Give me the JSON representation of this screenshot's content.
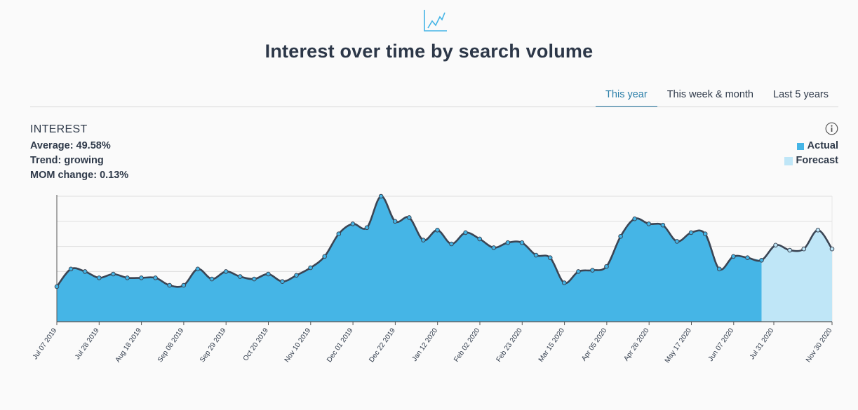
{
  "header": {
    "icon": "trend-chart-icon",
    "title": "Interest over time by search volume"
  },
  "tabs": [
    {
      "label": "This year",
      "active": true
    },
    {
      "label": "This week & month",
      "active": false
    },
    {
      "label": "Last 5 years",
      "active": false
    }
  ],
  "stats": {
    "heading": "INTEREST",
    "average": "Average: 49.58%",
    "trend": "Trend: growing",
    "mom_change": "MOM change: 0.13%"
  },
  "info_icon": "info-icon",
  "legend": {
    "actual": "Actual",
    "forecast": "Forecast"
  },
  "colors": {
    "actual": "#45b5e6",
    "forecast": "#bfe6f7",
    "line": "#3b4554",
    "accent": "#2a7ea8"
  },
  "chart_data": {
    "type": "area",
    "x_tick_labels": [
      "Jul 07 2019",
      "Jul 28 2019",
      "Aug 18 2019",
      "Sep 08 2019",
      "Sep 29 2019",
      "Oct 20 2019",
      "Nov 10 2019",
      "Dec 01 2019",
      "Dec 22 2019",
      "Jan 12 2020",
      "Feb 02 2020",
      "Feb 23 2020",
      "Mar 15 2020",
      "Apr 05 2020",
      "Apr 26 2020",
      "May 17 2020",
      "Jun 07 2020",
      "Jul 31 2020",
      "Nov 30 2020"
    ],
    "ylim": [
      0,
      100
    ],
    "grid": true,
    "y_tick_labels_visible": false,
    "series": [
      {
        "name": "Actual",
        "values": [
          28,
          42,
          40,
          35,
          38,
          35,
          35,
          35,
          29,
          29,
          42,
          34,
          40,
          36,
          34,
          38,
          32,
          37,
          43,
          52,
          70,
          78,
          75,
          100,
          80,
          83,
          65,
          73,
          62,
          71,
          66,
          59,
          63,
          63,
          53,
          51,
          31,
          40,
          41,
          44,
          68,
          82,
          78,
          77,
          64,
          71,
          70,
          42,
          52,
          51,
          49
        ]
      },
      {
        "name": "Forecast",
        "values": [
          49,
          61,
          57,
          58,
          73,
          58
        ]
      }
    ]
  }
}
